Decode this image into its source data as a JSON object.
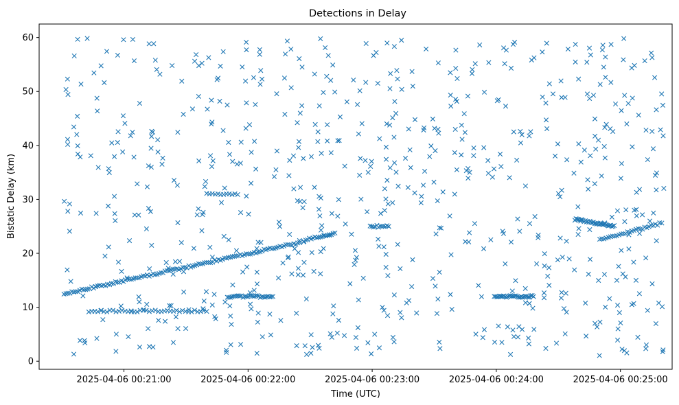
{
  "chart_data": {
    "type": "scatter",
    "title": "Detections in Delay",
    "xlabel": "Time (UTC)",
    "ylabel": "Bistatic Delay (km)",
    "marker": "x",
    "color": "#1f77b4",
    "grid": false,
    "xlim": [
      "2025-04-06 00:20:19",
      "2025-04-06 00:25:25"
    ],
    "ylim": [
      -1.5,
      62.5
    ],
    "x_ticks": [
      "2025-04-06 00:21:00",
      "2025-04-06 00:22:00",
      "2025-04-06 00:23:00",
      "2025-04-06 00:24:00",
      "2025-04-06 00:25:00"
    ],
    "y_ticks": [
      "0",
      "10",
      "20",
      "30",
      "40",
      "50",
      "60"
    ],
    "tracks": [
      {
        "t0": "2025-04-06 00:20:31",
        "t1": "2025-04-06 00:22:25",
        "y0": 12.5,
        "y1": 22.0,
        "n": 120
      },
      {
        "t0": "2025-04-06 00:22:27",
        "t1": "2025-04-06 00:22:42",
        "y0": 22.4,
        "y1": 23.8,
        "n": 18
      },
      {
        "t0": "2025-04-06 00:24:38",
        "t1": "2025-04-06 00:24:57",
        "y0": 26.3,
        "y1": 25.0,
        "n": 35
      },
      {
        "t0": "2025-04-06 00:24:50",
        "t1": "2025-04-06 00:25:20",
        "y0": 22.5,
        "y1": 25.6,
        "n": 30
      },
      {
        "t0": "2025-04-06 00:20:43",
        "t1": "2025-04-06 00:21:40",
        "y0": 9.3,
        "y1": 9.3,
        "n": 40
      },
      {
        "t0": "2025-04-06 00:21:50",
        "t1": "2025-04-06 00:22:12",
        "y0": 12.0,
        "y1": 12.0,
        "n": 30
      },
      {
        "t0": "2025-04-06 00:23:59",
        "t1": "2025-04-06 00:24:18",
        "y0": 12.0,
        "y1": 12.0,
        "n": 30
      },
      {
        "t0": "2025-04-06 00:22:59",
        "t1": "2025-04-06 00:23:08",
        "y0": 25.0,
        "y1": 25.0,
        "n": 12
      },
      {
        "t0": "2025-04-06 00:21:40",
        "t1": "2025-04-06 00:21:55",
        "y0": 31.0,
        "y1": 31.0,
        "n": 12
      }
    ],
    "clutter": {
      "count": 720,
      "y_range": [
        1,
        60
      ]
    }
  }
}
